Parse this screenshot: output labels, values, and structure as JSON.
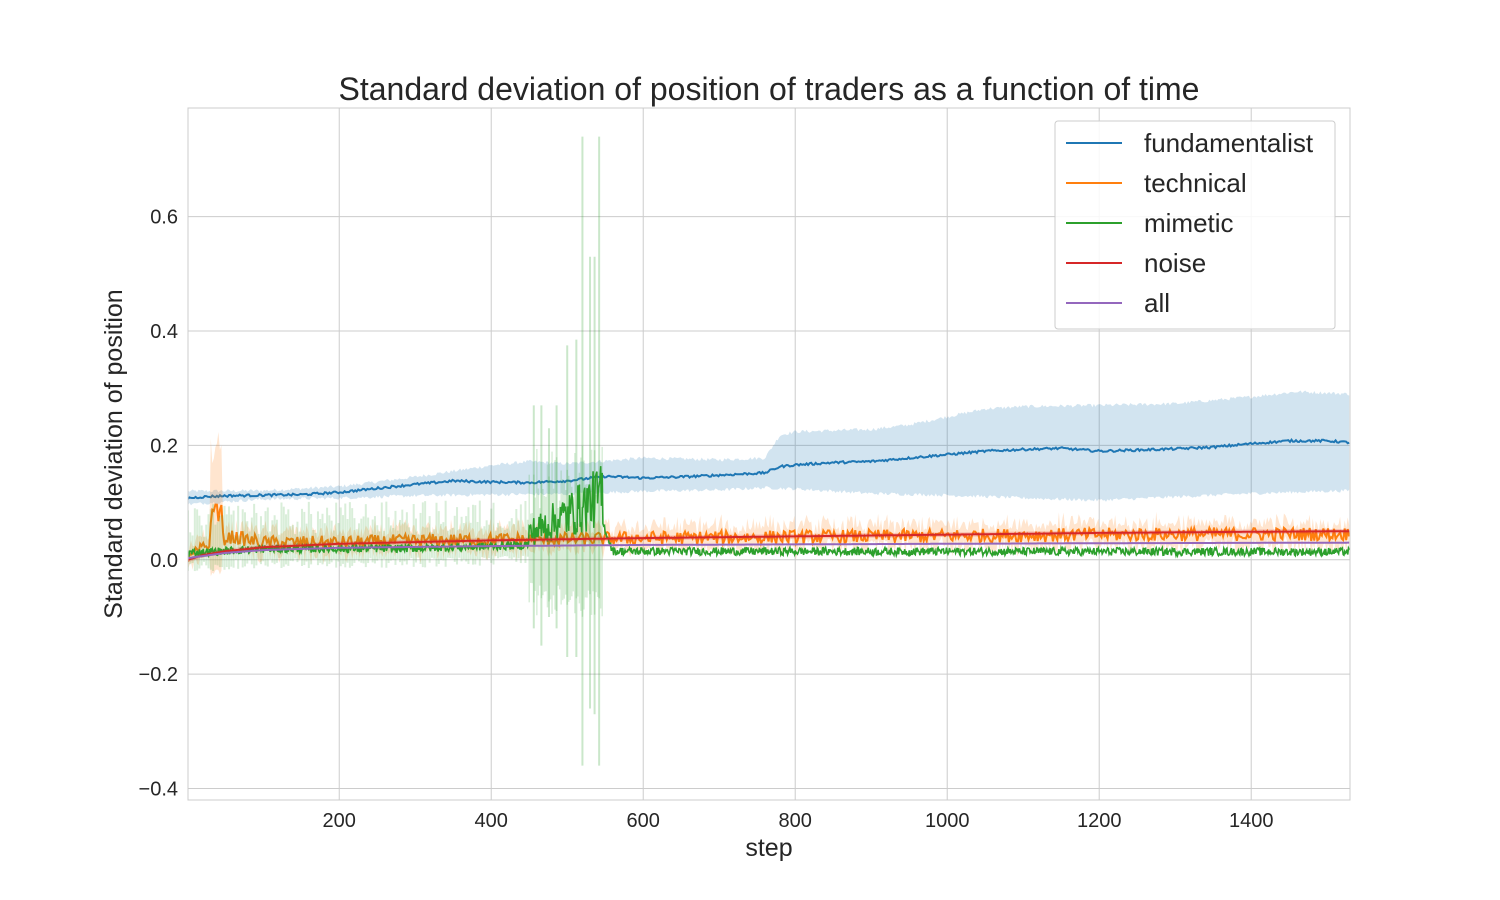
{
  "chart_data": {
    "type": "line",
    "title": "Standard deviation of position of traders as a function of time",
    "xlabel": "step",
    "ylabel": "Standard deviation of position",
    "xlim": [
      1,
      1530
    ],
    "ylim": [
      -0.42,
      0.79
    ],
    "xticks": [
      200,
      400,
      600,
      800,
      1000,
      1200,
      1400
    ],
    "xtick_labels": [
      "200",
      "400",
      "600",
      "800",
      "1000",
      "1200",
      "1400"
    ],
    "yticks": [
      -0.4,
      -0.2,
      0.0,
      0.2,
      0.4,
      0.6
    ],
    "ytick_labels": [
      "−0.4",
      "−0.2",
      "0.0",
      "0.2",
      "0.4",
      "0.6"
    ],
    "grid": true,
    "legend_position": "top-right",
    "series": [
      {
        "name": "fundamentalist",
        "color": "#1f77b4",
        "band": true,
        "mean_points": [
          [
            1,
            0.108
          ],
          [
            20,
            0.11
          ],
          [
            50,
            0.112
          ],
          [
            100,
            0.113
          ],
          [
            150,
            0.114
          ],
          [
            200,
            0.118
          ],
          [
            250,
            0.125
          ],
          [
            300,
            0.132
          ],
          [
            350,
            0.138
          ],
          [
            400,
            0.136
          ],
          [
            450,
            0.135
          ],
          [
            500,
            0.138
          ],
          [
            550,
            0.146
          ],
          [
            600,
            0.143
          ],
          [
            650,
            0.145
          ],
          [
            700,
            0.148
          ],
          [
            760,
            0.152
          ],
          [
            780,
            0.163
          ],
          [
            800,
            0.166
          ],
          [
            850,
            0.17
          ],
          [
            900,
            0.172
          ],
          [
            950,
            0.178
          ],
          [
            1000,
            0.184
          ],
          [
            1050,
            0.19
          ],
          [
            1100,
            0.193
          ],
          [
            1150,
            0.195
          ],
          [
            1200,
            0.19
          ],
          [
            1250,
            0.192
          ],
          [
            1300,
            0.194
          ],
          [
            1350,
            0.197
          ],
          [
            1400,
            0.203
          ],
          [
            1450,
            0.208
          ],
          [
            1500,
            0.208
          ],
          [
            1530,
            0.205
          ]
        ],
        "lower_points": [
          [
            1,
            0.097
          ],
          [
            100,
            0.106
          ],
          [
            200,
            0.108
          ],
          [
            300,
            0.112
          ],
          [
            400,
            0.114
          ],
          [
            500,
            0.115
          ],
          [
            600,
            0.12
          ],
          [
            700,
            0.122
          ],
          [
            760,
            0.126
          ],
          [
            800,
            0.124
          ],
          [
            900,
            0.116
          ],
          [
            1000,
            0.113
          ],
          [
            1100,
            0.108
          ],
          [
            1200,
            0.104
          ],
          [
            1300,
            0.11
          ],
          [
            1400,
            0.116
          ],
          [
            1500,
            0.12
          ],
          [
            1530,
            0.121
          ]
        ],
        "upper_points": [
          [
            1,
            0.12
          ],
          [
            100,
            0.121
          ],
          [
            200,
            0.128
          ],
          [
            300,
            0.145
          ],
          [
            400,
            0.165
          ],
          [
            450,
            0.172
          ],
          [
            500,
            0.168
          ],
          [
            600,
            0.178
          ],
          [
            700,
            0.175
          ],
          [
            760,
            0.178
          ],
          [
            780,
            0.218
          ],
          [
            800,
            0.224
          ],
          [
            900,
            0.228
          ],
          [
            950,
            0.236
          ],
          [
            1000,
            0.25
          ],
          [
            1050,
            0.264
          ],
          [
            1100,
            0.268
          ],
          [
            1200,
            0.27
          ],
          [
            1300,
            0.273
          ],
          [
            1400,
            0.285
          ],
          [
            1460,
            0.294
          ],
          [
            1530,
            0.29
          ]
        ]
      },
      {
        "name": "technical",
        "color": "#ff7f0e",
        "band": true,
        "noisy": true,
        "mean_points": [
          [
            1,
            0.0
          ],
          [
            20,
            0.02
          ],
          [
            40,
            0.035
          ],
          [
            60,
            0.04
          ],
          [
            100,
            0.03
          ],
          [
            200,
            0.03
          ],
          [
            300,
            0.033
          ],
          [
            400,
            0.035
          ],
          [
            500,
            0.036
          ],
          [
            600,
            0.038
          ],
          [
            800,
            0.04
          ],
          [
            1000,
            0.042
          ],
          [
            1200,
            0.044
          ],
          [
            1400,
            0.045
          ],
          [
            1530,
            0.045
          ]
        ],
        "spike": {
          "x_range": [
            30,
            46
          ],
          "value": 0.105,
          "band_top": 0.225,
          "band_bottom": -0.03
        },
        "noise_amplitude": 0.012,
        "band_half_width": 0.018
      },
      {
        "name": "mimetic",
        "color": "#2ca02c",
        "band": true,
        "noisy": true,
        "mean_points": [
          [
            1,
            0.005
          ],
          [
            100,
            0.012
          ],
          [
            300,
            0.013
          ],
          [
            440,
            0.018
          ],
          [
            480,
            0.03
          ],
          [
            520,
            0.045
          ],
          [
            546,
            0.06
          ],
          [
            560,
            0.008
          ],
          [
            1530,
            0.007
          ]
        ],
        "noise_amplitude": 0.014,
        "burst_x_range": [
          450,
          546
        ],
        "burst_extremes": [
          [
            456,
            0.27,
            -0.12
          ],
          [
            466,
            0.27,
            -0.15
          ],
          [
            476,
            0.23,
            -0.1
          ],
          [
            486,
            0.27,
            -0.12
          ],
          [
            500,
            0.375,
            -0.17
          ],
          [
            512,
            0.385,
            -0.17
          ],
          [
            520,
            0.74,
            -0.36
          ],
          [
            530,
            0.53,
            -0.26
          ],
          [
            536,
            0.53,
            -0.27
          ],
          [
            542,
            0.74,
            -0.36
          ]
        ]
      },
      {
        "name": "noise",
        "color": "#d62728",
        "band": true,
        "mean_points": [
          [
            1,
            0.0
          ],
          [
            20,
            0.008
          ],
          [
            50,
            0.015
          ],
          [
            100,
            0.022
          ],
          [
            200,
            0.028
          ],
          [
            300,
            0.031
          ],
          [
            400,
            0.034
          ],
          [
            500,
            0.036
          ],
          [
            600,
            0.038
          ],
          [
            800,
            0.041
          ],
          [
            1000,
            0.044
          ],
          [
            1200,
            0.047
          ],
          [
            1400,
            0.049
          ],
          [
            1530,
            0.05
          ]
        ],
        "band_half_width": 0.004
      },
      {
        "name": "all",
        "color": "#9467bd",
        "band": false,
        "mean_points": [
          [
            1,
            0.003
          ],
          [
            50,
            0.012
          ],
          [
            100,
            0.017
          ],
          [
            200,
            0.021
          ],
          [
            400,
            0.024
          ],
          [
            600,
            0.026
          ],
          [
            800,
            0.027
          ],
          [
            1000,
            0.028
          ],
          [
            1200,
            0.029
          ],
          [
            1530,
            0.03
          ]
        ]
      }
    ]
  }
}
